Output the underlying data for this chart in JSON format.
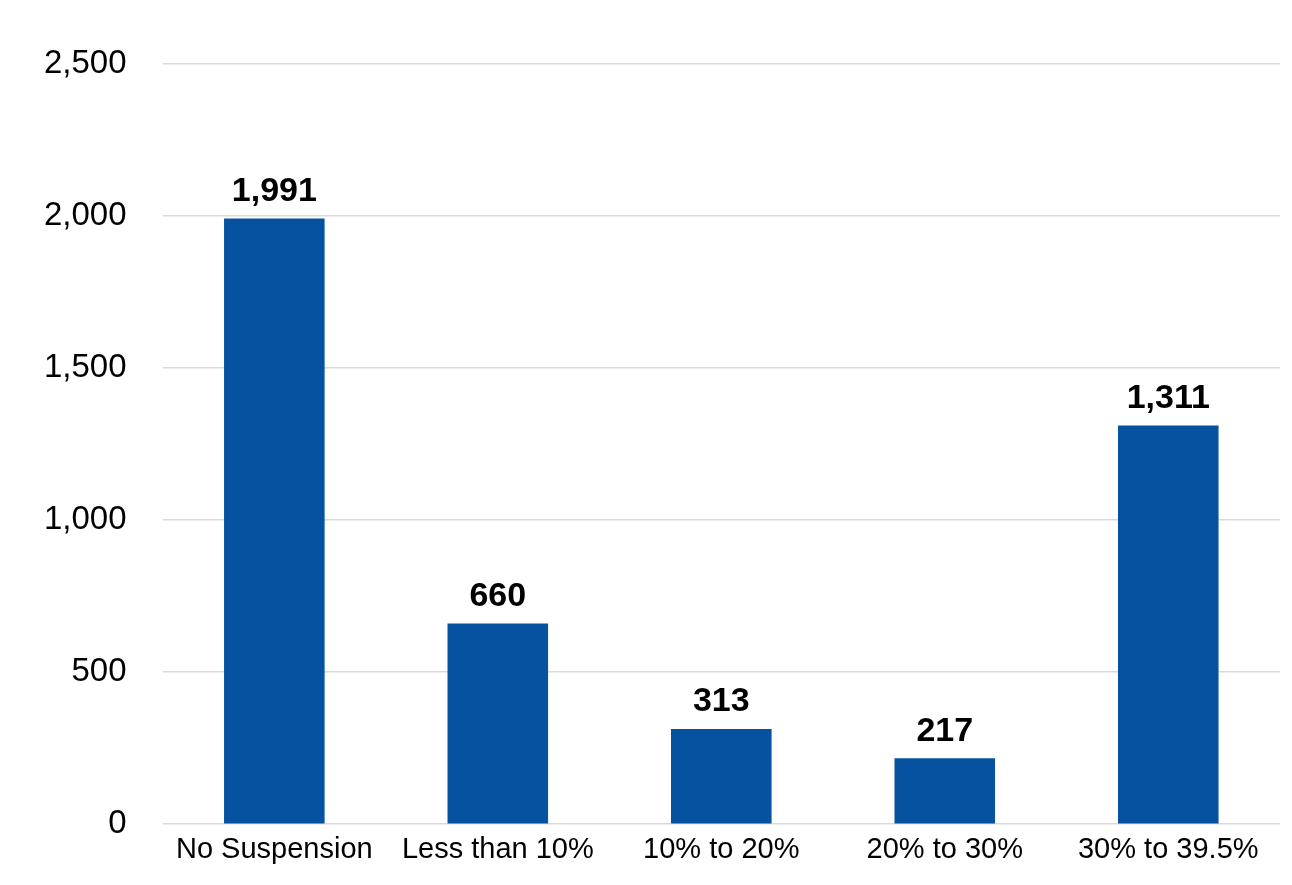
{
  "chart_data": {
    "type": "bar",
    "categories": [
      "No Suspension",
      "Less than 10%",
      "10% to 20%",
      "20% to 30%",
      "30% to 39.5%"
    ],
    "values": [
      1991,
      660,
      313,
      217,
      1311
    ],
    "value_labels": [
      "1,991",
      "660",
      "313",
      "217",
      "1,311"
    ],
    "color": "#0652a0",
    "ylim": [
      0,
      2500
    ],
    "yticks": [
      {
        "value": 0,
        "label": "0"
      },
      {
        "value": 500,
        "label": "500"
      },
      {
        "value": 1000,
        "label": "1,000"
      },
      {
        "value": 1500,
        "label": "1,500"
      },
      {
        "value": 2000,
        "label": "2,000"
      },
      {
        "value": 2500,
        "label": "2,500"
      }
    ],
    "grid": "y",
    "legend": false
  }
}
